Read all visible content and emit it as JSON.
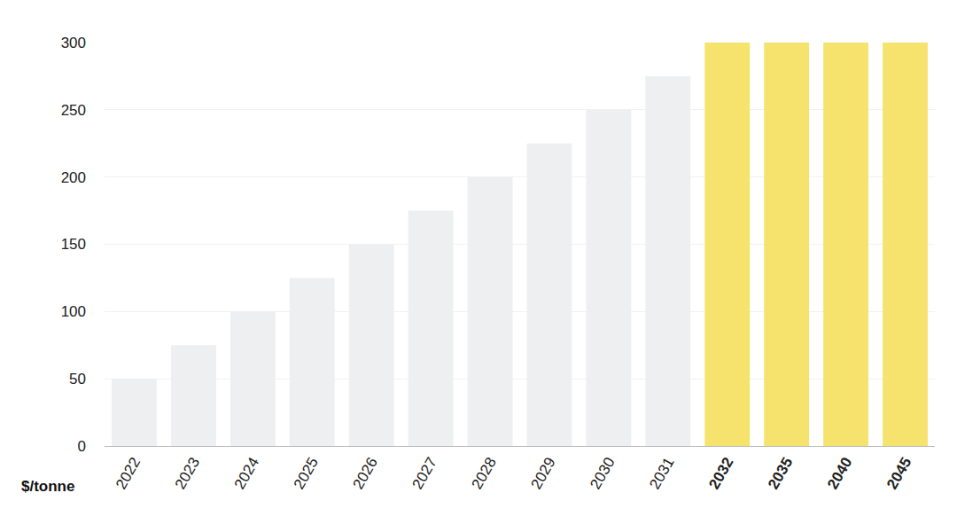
{
  "chart_data": {
    "type": "bar",
    "ylabel": "$/tonne",
    "categories": [
      "2022",
      "2023",
      "2024",
      "2025",
      "2026",
      "2027",
      "2028",
      "2029",
      "2030",
      "2031",
      "2032",
      "2035",
      "2040",
      "2045"
    ],
    "values": [
      50,
      75,
      100,
      125,
      150,
      175,
      200,
      225,
      250,
      275,
      300,
      300,
      300,
      300
    ],
    "colors": [
      "#eeeff1",
      "#eeeff1",
      "#eeeff1",
      "#eeeff1",
      "#eeeff1",
      "#eeeff1",
      "#eeeff1",
      "#eeeff1",
      "#eeeff1",
      "#eeeff1",
      "#f5e36e",
      "#f5e36e",
      "#f5e36e",
      "#f5e36e"
    ],
    "ylim": [
      0,
      300
    ],
    "yticks": [
      0,
      50,
      100,
      150,
      200,
      250,
      300
    ],
    "grid": true
  }
}
